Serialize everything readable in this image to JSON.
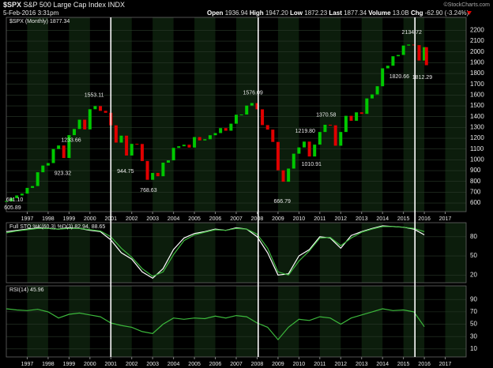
{
  "header": {
    "symbol": "$SPX",
    "name": "S&P 500 Large Cap Index",
    "exchange": "INDX",
    "date": "5-Feb-2016 3:31pm",
    "quote": [
      {
        "label": "Open",
        "value": "1936.94"
      },
      {
        "label": "High",
        "value": "1947.20"
      },
      {
        "label": "Low",
        "value": "1872.23"
      },
      {
        "label": "Last",
        "value": "1877.34"
      },
      {
        "label": "Volume",
        "value": "13.0B"
      },
      {
        "label": "Chg",
        "value": "-62.90 (-3.24%)"
      }
    ],
    "credit": "©StockCharts.com"
  },
  "chart_data": [
    {
      "type": "candlestick",
      "xlim": [
        1996,
        2018
      ],
      "ylim": [
        520,
        2320
      ],
      "xticks": [
        1997,
        1998,
        1999,
        2000,
        2001,
        2002,
        2003,
        2004,
        2005,
        2006,
        2007,
        2008,
        2009,
        2010,
        2011,
        2012,
        2013,
        2014,
        2015,
        2016,
        2017
      ],
      "yticks": [
        600,
        700,
        800,
        900,
        1000,
        1100,
        1200,
        1300,
        1400,
        1500,
        1600,
        1700,
        1800,
        1900,
        2000,
        2100,
        2200
      ],
      "grid": true,
      "up_color": "#00c800",
      "down_color": "#e00000",
      "marker_color": "#ffffff",
      "markers_x": [
        2001.0,
        2008.05,
        2015.55
      ],
      "x": [
        1996.0,
        1996.25,
        1996.5,
        1996.75,
        1997.0,
        1997.25,
        1997.5,
        1997.75,
        1998.0,
        1998.25,
        1998.5,
        1998.75,
        1999.0,
        1999.25,
        1999.5,
        1999.75,
        2000.0,
        2000.25,
        2000.5,
        2000.75,
        2001.0,
        2001.25,
        2001.5,
        2001.75,
        2002.0,
        2002.25,
        2002.5,
        2002.75,
        2003.0,
        2003.25,
        2003.5,
        2003.75,
        2004.0,
        2004.25,
        2004.5,
        2004.75,
        2005.0,
        2005.25,
        2005.5,
        2005.75,
        2006.0,
        2006.25,
        2006.5,
        2006.75,
        2007.0,
        2007.25,
        2007.5,
        2007.75,
        2008.0,
        2008.25,
        2008.5,
        2008.75,
        2009.0,
        2009.25,
        2009.5,
        2009.75,
        2010.0,
        2010.25,
        2010.5,
        2010.75,
        2011.0,
        2011.25,
        2011.5,
        2011.75,
        2012.0,
        2012.25,
        2012.5,
        2012.75,
        2013.0,
        2013.25,
        2013.5,
        2013.75,
        2014.0,
        2014.25,
        2014.5,
        2014.75,
        2015.0,
        2015.25,
        2015.5,
        2015.75,
        2016.0,
        2016.1
      ],
      "series": [
        {
          "name": "$SPX (Monthly) 1877.34",
          "values": [
            615,
            645,
            670,
            687,
            740,
            757,
            885,
            947,
            970,
            1101,
            1133,
            1017,
            1229,
            1286,
            1372,
            1282,
            1469,
            1498,
            1454,
            1436,
            1320,
            1160,
            1224,
            1040,
            1148,
            1147,
            989,
            815,
            879,
            848,
            974,
            995,
            1111,
            1126,
            1140,
            1114,
            1211,
            1180,
            1191,
            1228,
            1248,
            1294,
            1270,
            1335,
            1418,
            1420,
            1503,
            1526,
            1468,
            1322,
            1280,
            1166,
            903,
            797,
            919,
            1057,
            1115,
            1169,
            1031,
            1141,
            1258,
            1325,
            1320,
            1131,
            1258,
            1408,
            1362,
            1440,
            1426,
            1569,
            1606,
            1682,
            1848,
            1872,
            1960,
            1972,
            2059,
            2068,
            2063,
            1920,
            2044,
            1877
          ]
        }
      ],
      "annotations": [
        {
          "label": "681.10",
          "x": 1996.4,
          "y": 681.1
        },
        {
          "label": "605.89",
          "x": 1996.3,
          "y": 605.89
        },
        {
          "label": "923.32",
          "x": 1998.7,
          "y": 923.32
        },
        {
          "label": "1233.66",
          "x": 1999.1,
          "y": 1233.66
        },
        {
          "label": "1553.11",
          "x": 2000.2,
          "y": 1553.11
        },
        {
          "label": "944.75",
          "x": 2001.7,
          "y": 944.75
        },
        {
          "label": "768.63",
          "x": 2002.8,
          "y": 768.63
        },
        {
          "label": "1576.09",
          "x": 2007.8,
          "y": 1576.09
        },
        {
          "label": "666.79",
          "x": 2009.2,
          "y": 666.79
        },
        {
          "label": "1219.80",
          "x": 2010.3,
          "y": 1219.8
        },
        {
          "label": "1010.91",
          "x": 2010.6,
          "y": 1010.91
        },
        {
          "label": "1370.58",
          "x": 2011.3,
          "y": 1370.58
        },
        {
          "label": "2134.72",
          "x": 2015.4,
          "y": 2134.72
        },
        {
          "label": "1820.66",
          "x": 2014.8,
          "y": 1820.66
        },
        {
          "label": "1812.29",
          "x": 2015.9,
          "y": 1812.29
        }
      ]
    },
    {
      "type": "line",
      "title": "Full STO %K(60,3) %D(3) 82.94, 88.65",
      "xlim": [
        1996,
        2018
      ],
      "ylim": [
        8,
        102
      ],
      "yticks": [
        20,
        50,
        80
      ],
      "grid": true,
      "x": [
        1996.0,
        1996.5,
        1997.0,
        1997.5,
        1998.0,
        1998.5,
        1999.0,
        1999.5,
        2000.0,
        2000.5,
        2001.0,
        2001.5,
        2002.0,
        2002.5,
        2003.0,
        2003.5,
        2004.0,
        2004.5,
        2005.0,
        2005.5,
        2006.0,
        2006.5,
        2007.0,
        2007.5,
        2008.0,
        2008.5,
        2009.0,
        2009.5,
        2010.0,
        2010.5,
        2011.0,
        2011.5,
        2012.0,
        2012.5,
        2013.0,
        2013.5,
        2014.0,
        2014.5,
        2015.0,
        2015.5,
        2016.0
      ],
      "series": [
        {
          "name": "%K",
          "color": "#ffffff",
          "values": [
            88,
            90,
            92,
            94,
            93,
            92,
            94,
            93,
            90,
            88,
            75,
            55,
            45,
            25,
            15,
            30,
            60,
            78,
            85,
            88,
            92,
            90,
            94,
            92,
            80,
            55,
            20,
            22,
            50,
            60,
            80,
            78,
            62,
            82,
            88,
            93,
            97,
            96,
            95,
            92,
            83
          ]
        },
        {
          "name": "%D",
          "color": "#3cb83c",
          "values": [
            86,
            89,
            91,
            93,
            93,
            92,
            93,
            93,
            91,
            89,
            80,
            62,
            48,
            30,
            18,
            25,
            52,
            74,
            83,
            87,
            91,
            90,
            93,
            92,
            84,
            62,
            25,
            20,
            42,
            58,
            78,
            79,
            66,
            78,
            87,
            92,
            96,
            96,
            95,
            93,
            88
          ]
        }
      ]
    },
    {
      "type": "line",
      "title": "RSI(14) 45.96",
      "xlim": [
        1996,
        2018
      ],
      "ylim": [
        -3,
        112
      ],
      "xticks": [
        1997,
        1998,
        1999,
        2000,
        2001,
        2002,
        2003,
        2004,
        2005,
        2006,
        2007,
        2008,
        2009,
        2010,
        2011,
        2012,
        2013,
        2014,
        2015,
        2016,
        2017
      ],
      "yticks": [
        10,
        30,
        50,
        70,
        90
      ],
      "grid": true,
      "x": [
        1996.0,
        1996.5,
        1997.0,
        1997.5,
        1998.0,
        1998.5,
        1999.0,
        1999.5,
        2000.0,
        2000.5,
        2001.0,
        2001.5,
        2002.0,
        2002.5,
        2003.0,
        2003.5,
        2004.0,
        2004.5,
        2005.0,
        2005.5,
        2006.0,
        2006.5,
        2007.0,
        2007.5,
        2008.0,
        2008.5,
        2009.0,
        2009.5,
        2010.0,
        2010.5,
        2011.0,
        2011.5,
        2012.0,
        2012.5,
        2013.0,
        2013.5,
        2014.0,
        2014.5,
        2015.0,
        2015.5,
        2016.0
      ],
      "series": [
        {
          "name": "RSI",
          "color": "#3cb83c",
          "values": [
            75,
            73,
            72,
            74,
            70,
            60,
            66,
            68,
            65,
            62,
            52,
            48,
            45,
            38,
            35,
            50,
            60,
            58,
            60,
            59,
            63,
            60,
            64,
            62,
            52,
            45,
            25,
            45,
            58,
            56,
            62,
            60,
            50,
            60,
            65,
            70,
            75,
            72,
            73,
            70,
            46
          ]
        }
      ]
    }
  ]
}
